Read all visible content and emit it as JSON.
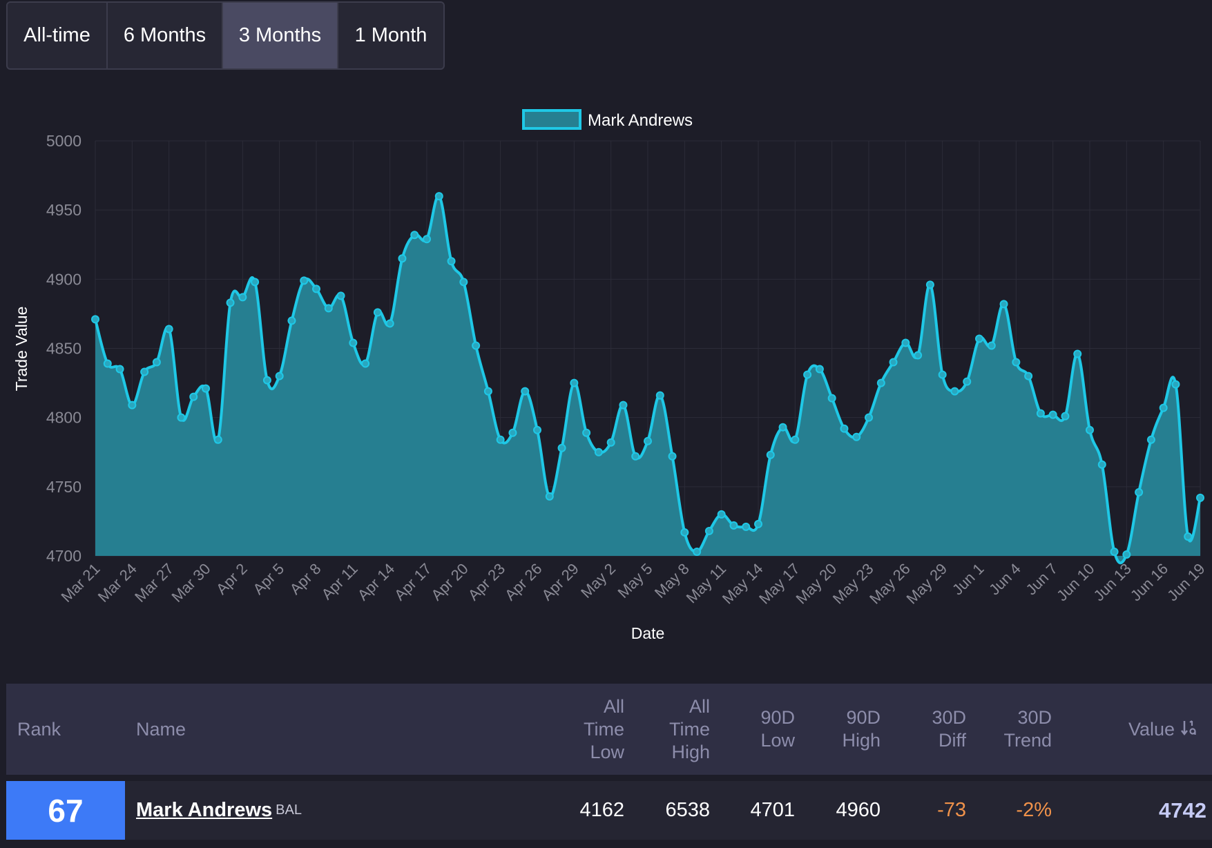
{
  "range_tabs": [
    {
      "label": "All-time",
      "active": false
    },
    {
      "label": "6 Months",
      "active": false
    },
    {
      "label": "3 Months",
      "active": true
    },
    {
      "label": "1 Month",
      "active": false
    }
  ],
  "colors": {
    "line": "#1fc8e6",
    "fill": "#267f91",
    "accent_rank": "#3d7af7",
    "negative": "#f0924a"
  },
  "chart_data": {
    "type": "area",
    "xlabel": "Date",
    "ylabel": "Trade Value",
    "ylim": [
      4700,
      5000
    ],
    "yticks": [
      "4700",
      "4750",
      "4800",
      "4850",
      "4900",
      "4950",
      "5000"
    ],
    "grid": true,
    "legend_position": "top-center",
    "x_tick_labels": [
      "Mar 21",
      "Mar 24",
      "Mar 27",
      "Mar 30",
      "Apr 2",
      "Apr 5",
      "Apr 8",
      "Apr 11",
      "Apr 14",
      "Apr 17",
      "Apr 20",
      "Apr 23",
      "Apr 26",
      "Apr 29",
      "May 2",
      "May 5",
      "May 8",
      "May 11",
      "May 14",
      "May 17",
      "May 20",
      "May 23",
      "May 26",
      "May 29",
      "Jun 1",
      "Jun 4",
      "Jun 7",
      "Jun 10",
      "Jun 13",
      "Jun 16",
      "Jun 19"
    ],
    "series": [
      {
        "name": "Mark Andrews",
        "values": [
          4871,
          4839,
          4835,
          4809,
          4833,
          4840,
          4864,
          4800,
          4815,
          4821,
          4784,
          4883,
          4887,
          4898,
          4827,
          4830,
          4870,
          4899,
          4893,
          4879,
          4888,
          4854,
          4839,
          4876,
          4868,
          4915,
          4932,
          4929,
          4960,
          4913,
          4898,
          4852,
          4819,
          4784,
          4789,
          4819,
          4791,
          4743,
          4778,
          4825,
          4789,
          4775,
          4782,
          4809,
          4772,
          4783,
          4816,
          4772,
          4717,
          4703,
          4718,
          4730,
          4722,
          4721,
          4723,
          4773,
          4793,
          4784,
          4831,
          4835,
          4814,
          4792,
          4786,
          4800,
          4825,
          4840,
          4854,
          4845,
          4896,
          4831,
          4819,
          4826,
          4857,
          4852,
          4882,
          4840,
          4830,
          4803,
          4802,
          4801,
          4846,
          4791,
          4766,
          4703,
          4701,
          4746,
          4784,
          4807,
          4824,
          4714,
          4742
        ]
      }
    ]
  },
  "table": {
    "headers": {
      "rank": "Rank",
      "name": "Name",
      "all_time_low": [
        "All",
        "Time",
        "Low"
      ],
      "all_time_high": [
        "All",
        "Time",
        "High"
      ],
      "low_90d": [
        "90D",
        "Low"
      ],
      "high_90d": [
        "90D",
        "High"
      ],
      "diff_30d": [
        "30D",
        "Diff"
      ],
      "trend_30d": [
        "30D",
        "Trend"
      ],
      "value": "Value"
    },
    "row": {
      "rank": "67",
      "name": "Mark Andrews",
      "team": "BAL",
      "all_time_low": "4162",
      "all_time_high": "6538",
      "low_90d": "4701",
      "high_90d": "4960",
      "diff_30d": "-73",
      "trend_30d": "-2%",
      "value": "4742"
    }
  }
}
